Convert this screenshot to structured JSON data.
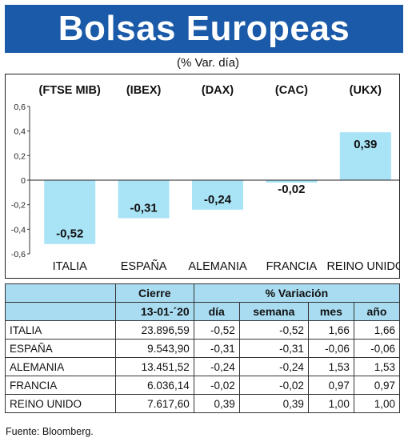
{
  "header": {
    "title": "Bolsas Europeas"
  },
  "subtitle": "(% Var. día)",
  "chart_data": {
    "type": "bar",
    "categories": [
      "ITALIA",
      "ESPAÑA",
      "ALEMANIA",
      "FRANCIA",
      "REINO UNIDO"
    ],
    "indices": [
      "(FTSE MIB)",
      "(IBEX)",
      "(DAX)",
      "(CAC)",
      "(UKX)"
    ],
    "values": [
      -0.52,
      -0.31,
      -0.24,
      -0.02,
      0.39
    ],
    "value_labels": [
      "-0,52",
      "-0,31",
      "-0,24",
      "-0,02",
      "0,39"
    ],
    "ylim": [
      -0.6,
      0.6
    ],
    "yticks": [
      0.6,
      0.4,
      0.2,
      0,
      -0.2,
      -0.4,
      -0.6
    ],
    "ytick_labels": [
      "0,6",
      "0,4",
      "0,2",
      "0",
      "-0,2",
      "-0,4",
      "-0,6"
    ],
    "grid": false,
    "bar_color": "#a9e3f6"
  },
  "table": {
    "header1": {
      "cierre": "Cierre",
      "variacion": "% Variación"
    },
    "header2": {
      "date": "13-01-´20",
      "dia": "día",
      "semana": "semana",
      "mes": "mes",
      "ano": "año"
    },
    "rows": [
      {
        "name": "ITALIA",
        "cierre": "23.896,59",
        "dia": "-0,52",
        "semana": "-0,52",
        "mes": "1,66",
        "ano": "1,66"
      },
      {
        "name": "ESPAÑA",
        "cierre": "9.543,90",
        "dia": "-0,31",
        "semana": "-0,31",
        "mes": "-0,06",
        "ano": "-0,06"
      },
      {
        "name": "ALEMANIA",
        "cierre": "13.451,52",
        "dia": "-0,24",
        "semana": "-0,24",
        "mes": "1,53",
        "ano": "1,53"
      },
      {
        "name": "FRANCIA",
        "cierre": "6.036,14",
        "dia": "-0,02",
        "semana": "-0,02",
        "mes": "0,97",
        "ano": "0,97"
      },
      {
        "name": "REINO UNIDO",
        "cierre": "7.617,60",
        "dia": "0,39",
        "semana": "0,39",
        "mes": "1,00",
        "ano": "1,00"
      }
    ]
  },
  "source": "Fuente: Bloomberg."
}
